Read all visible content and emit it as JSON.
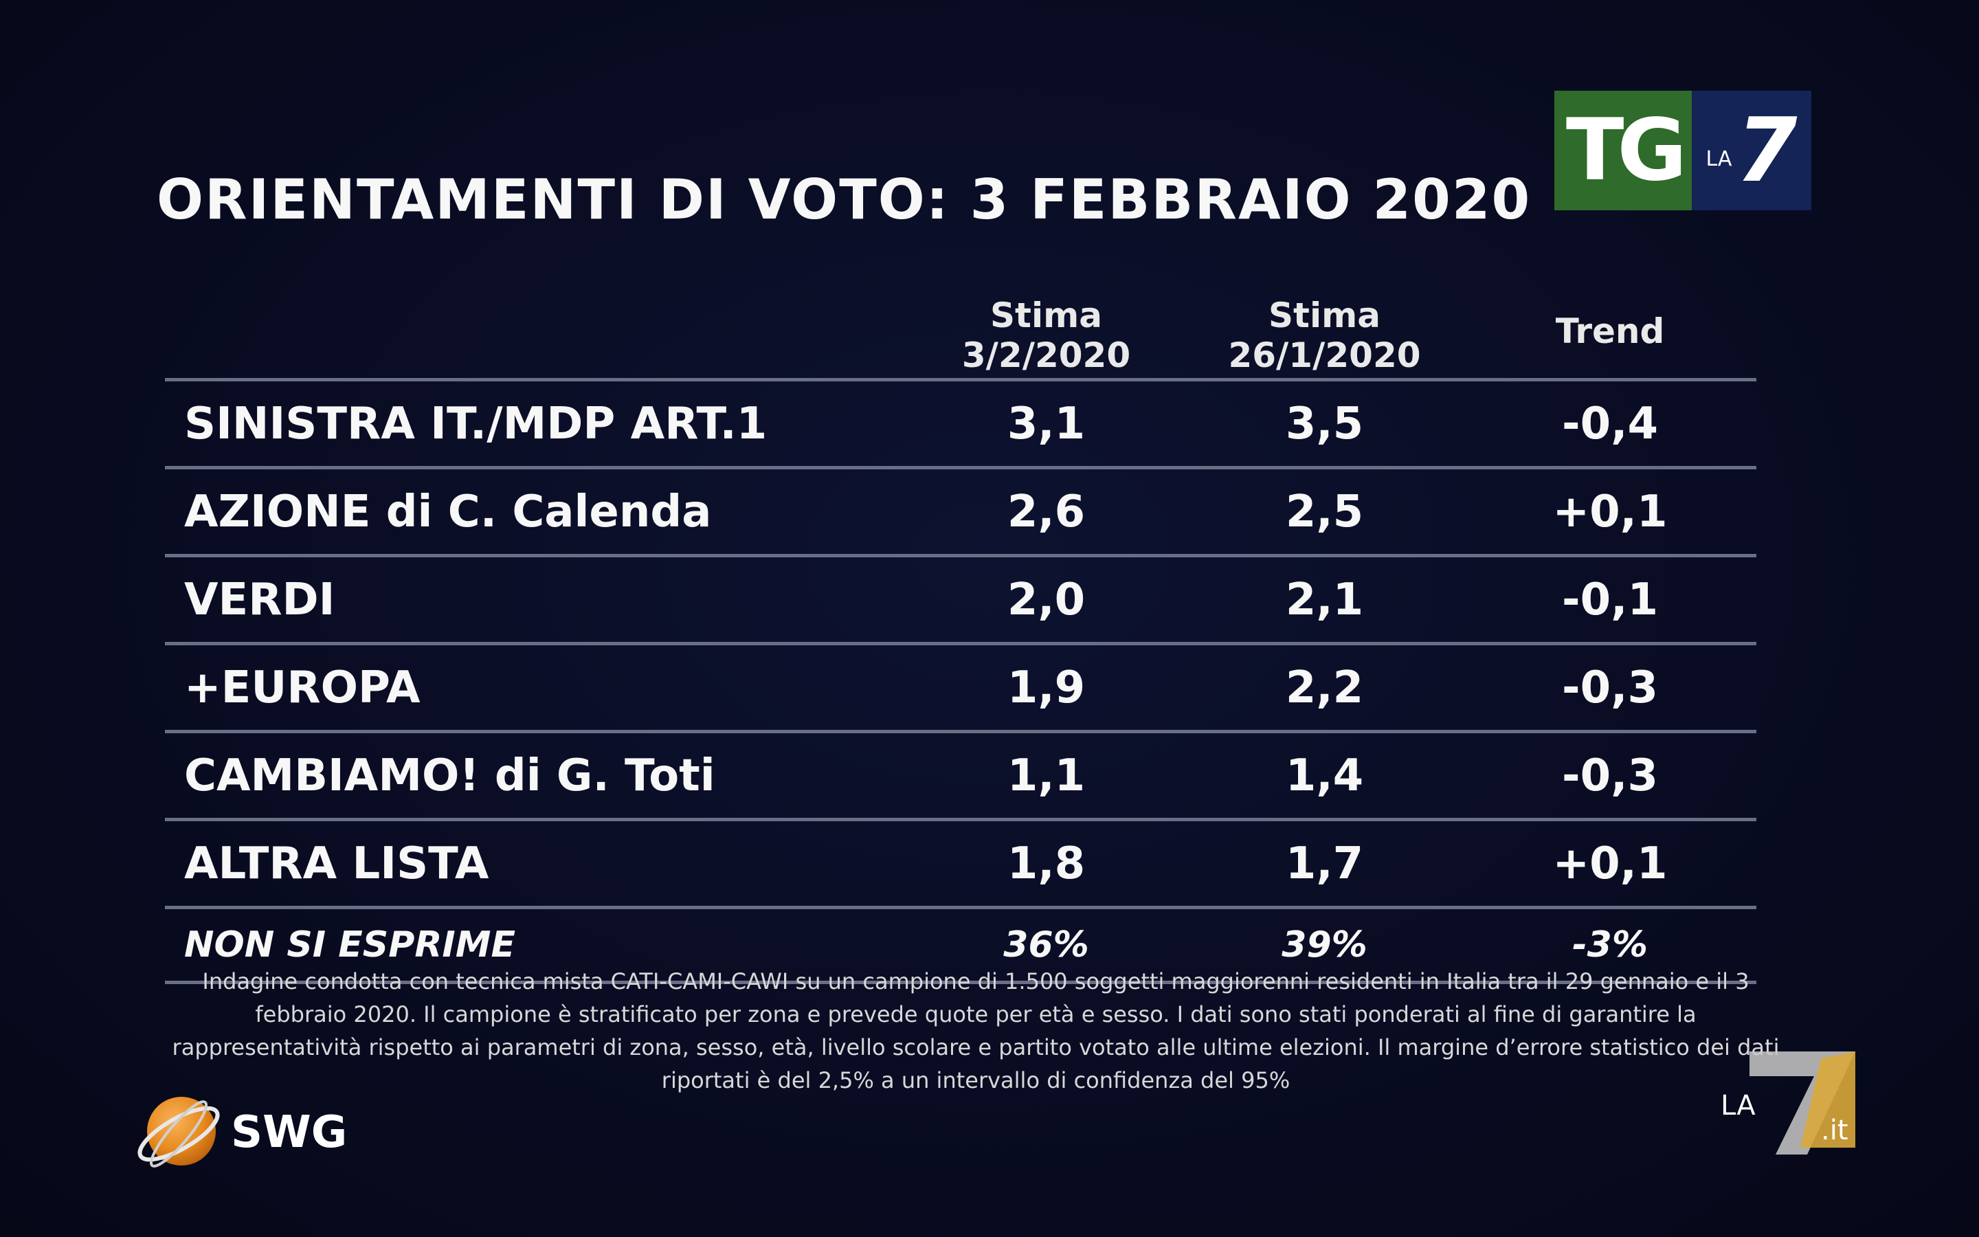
{
  "title": "ORIENTAMENTI DI VOTO: 3 FEBBRAIO 2020",
  "logos": {
    "tg_text": "TG",
    "tg_la": "LA",
    "tg_seven": "7",
    "swg": "SWG",
    "la7it_la": "LA",
    "la7it_seven": "7",
    "la7it_it": ".it"
  },
  "table": {
    "headers": {
      "party": "",
      "col1_line1": "Stima",
      "col1_line2": "3/2/2020",
      "col2_line1": "Stima",
      "col2_line2": "26/1/2020",
      "trend": "Trend"
    },
    "rows": [
      {
        "party": "SINISTRA IT./MDP ART.1",
        "stima_3_2": "3,1",
        "stima_26_1": "3,5",
        "trend": "-0,4"
      },
      {
        "party": "AZIONE di C. Calenda",
        "stima_3_2": "2,6",
        "stima_26_1": "2,5",
        "trend": "+0,1"
      },
      {
        "party": "VERDI",
        "stima_3_2": "2,0",
        "stima_26_1": "2,1",
        "trend": "-0,1"
      },
      {
        "party": "+EUROPA",
        "stima_3_2": "1,9",
        "stima_26_1": "2,2",
        "trend": "-0,3"
      },
      {
        "party": "CAMBIAMO! di G. Toti",
        "stima_3_2": "1,1",
        "stima_26_1": "1,4",
        "trend": "-0,3"
      },
      {
        "party": "ALTRA LISTA",
        "stima_3_2": "1,8",
        "stima_26_1": "1,7",
        "trend": "+0,1"
      },
      {
        "party": "NON SI ESPRIME",
        "stima_3_2": "36%",
        "stima_26_1": "39%",
        "trend": "-3%"
      }
    ]
  },
  "note": "Indagine condotta con tecnica mista CATI-CAMI-CAWI su un campione di 1.500 soggetti maggiorenni residenti in Italia tra il 29 gennaio e il 3 febbraio 2020. Il campione è stratificato per zona e prevede quote per età e sesso. I dati sono stati ponderati al fine di garantire la rappresentatività rispetto ai parametri di zona, sesso, età, livello scolare e partito votato alle ultime elezioni. Il margine d’errore statistico dei dati riportati è del 2,5% a un intervallo di confidenza del 95%",
  "colors": {
    "background": "#090c22",
    "rule": "#6a6e86",
    "tg_green": "#2f6b2a",
    "la7_blue": "#142456",
    "swg_orange": "#e88a1f",
    "la7it_gold": "#d9a93a"
  },
  "chart_data": {
    "type": "table",
    "title": "ORIENTAMENTI DI VOTO: 3 FEBBRAIO 2020",
    "columns": [
      "",
      "Stima 3/2/2020",
      "Stima 26/1/2020",
      "Trend"
    ],
    "categories": [
      "SINISTRA IT./MDP ART.1",
      "AZIONE di C. Calenda",
      "VERDI",
      "+EUROPA",
      "CAMBIAMO! di G. Toti",
      "ALTRA LISTA",
      "NON SI ESPRIME"
    ],
    "series": [
      {
        "name": "Stima 3/2/2020",
        "values": [
          3.1,
          2.6,
          2.0,
          1.9,
          1.1,
          1.8,
          36
        ]
      },
      {
        "name": "Stima 26/1/2020",
        "values": [
          3.5,
          2.5,
          2.1,
          2.2,
          1.4,
          1.7,
          39
        ]
      },
      {
        "name": "Trend",
        "values": [
          -0.4,
          0.1,
          -0.1,
          -0.3,
          -0.3,
          0.1,
          -3
        ]
      }
    ]
  }
}
